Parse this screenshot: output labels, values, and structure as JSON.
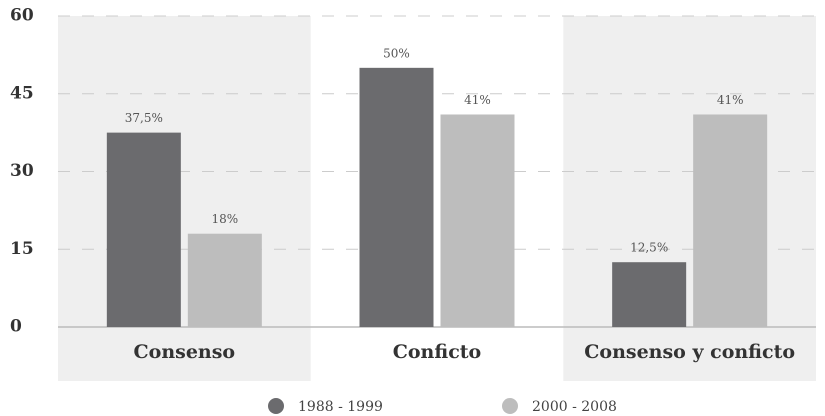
{
  "chart_data": {
    "type": "bar",
    "categories": [
      "Consenso",
      "Conficto",
      "Consenso y conficto"
    ],
    "series": [
      {
        "name": "1988 - 1999",
        "color": "#6b6b6e",
        "values": [
          37.5,
          50,
          12.5
        ],
        "value_labels": [
          "37,5%",
          "50%",
          "12,5%"
        ]
      },
      {
        "name": "2000 - 2008",
        "color": "#bdbdbd",
        "values": [
          18,
          41,
          41
        ],
        "value_labels": [
          "18%",
          "41%",
          "41%"
        ]
      }
    ],
    "ylim": [
      0,
      60
    ],
    "yticks": [
      0,
      15,
      30,
      45,
      60
    ],
    "grid": true
  }
}
